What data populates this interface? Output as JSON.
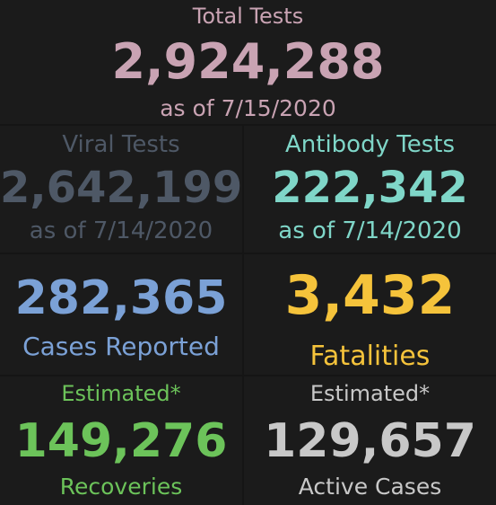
{
  "colors": {
    "total": "#c9a3b3",
    "viral": "#4e5866",
    "antibody": "#7fd6c8",
    "cases": "#7ba1d6",
    "fatalities": "#f5c33b",
    "recoveries": "#6cc35a",
    "active": "#c8c8c8"
  },
  "total_tests": {
    "label": "Total Tests",
    "value": "2,924,288",
    "as_of": "as of 7/15/2020"
  },
  "viral_tests": {
    "label": "Viral Tests",
    "value": "2,642,199",
    "as_of": "as of 7/14/2020"
  },
  "antibody_tests": {
    "label": "Antibody Tests",
    "value": "222,342",
    "as_of": "as of 7/14/2020"
  },
  "cases": {
    "value": "282,365",
    "label": "Cases Reported"
  },
  "fatalities": {
    "value": "3,432",
    "label": "Fatalities"
  },
  "recoveries": {
    "label": "Estimated*",
    "value": "149,276",
    "sub": "Recoveries"
  },
  "active_cases": {
    "label": "Estimated*",
    "value": "129,657",
    "sub": "Active Cases"
  }
}
